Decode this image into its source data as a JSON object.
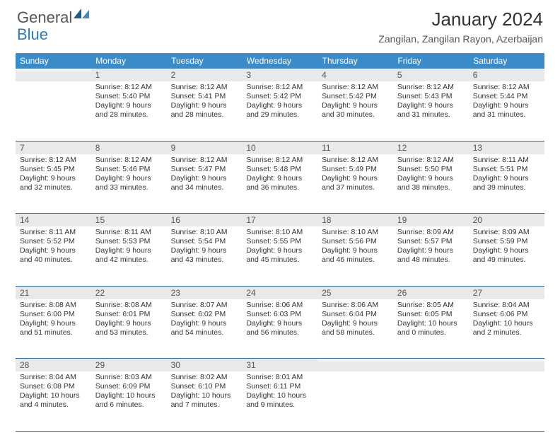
{
  "logo": {
    "text1": "General",
    "text2": "Blue"
  },
  "title": "January 2024",
  "location": "Zangilan, Zangilan Rayon, Azerbaijan",
  "colors": {
    "header_bg": "#3b8bc9",
    "header_text": "#ffffff",
    "daynum_bg": "#e9e9e9",
    "row_divider": "#2c6aa0",
    "logo_blue": "#2c7bb6",
    "body_bg": "#ffffff",
    "text": "#333333"
  },
  "weekdays": [
    "Sunday",
    "Monday",
    "Tuesday",
    "Wednesday",
    "Thursday",
    "Friday",
    "Saturday"
  ],
  "weeks": [
    [
      {
        "day": "",
        "sunrise": "",
        "sunset": "",
        "daylight_a": "",
        "daylight_b": ""
      },
      {
        "day": "1",
        "sunrise": "Sunrise: 8:12 AM",
        "sunset": "Sunset: 5:40 PM",
        "daylight_a": "Daylight: 9 hours",
        "daylight_b": "and 28 minutes."
      },
      {
        "day": "2",
        "sunrise": "Sunrise: 8:12 AM",
        "sunset": "Sunset: 5:41 PM",
        "daylight_a": "Daylight: 9 hours",
        "daylight_b": "and 28 minutes."
      },
      {
        "day": "3",
        "sunrise": "Sunrise: 8:12 AM",
        "sunset": "Sunset: 5:42 PM",
        "daylight_a": "Daylight: 9 hours",
        "daylight_b": "and 29 minutes."
      },
      {
        "day": "4",
        "sunrise": "Sunrise: 8:12 AM",
        "sunset": "Sunset: 5:42 PM",
        "daylight_a": "Daylight: 9 hours",
        "daylight_b": "and 30 minutes."
      },
      {
        "day": "5",
        "sunrise": "Sunrise: 8:12 AM",
        "sunset": "Sunset: 5:43 PM",
        "daylight_a": "Daylight: 9 hours",
        "daylight_b": "and 31 minutes."
      },
      {
        "day": "6",
        "sunrise": "Sunrise: 8:12 AM",
        "sunset": "Sunset: 5:44 PM",
        "daylight_a": "Daylight: 9 hours",
        "daylight_b": "and 31 minutes."
      }
    ],
    [
      {
        "day": "7",
        "sunrise": "Sunrise: 8:12 AM",
        "sunset": "Sunset: 5:45 PM",
        "daylight_a": "Daylight: 9 hours",
        "daylight_b": "and 32 minutes."
      },
      {
        "day": "8",
        "sunrise": "Sunrise: 8:12 AM",
        "sunset": "Sunset: 5:46 PM",
        "daylight_a": "Daylight: 9 hours",
        "daylight_b": "and 33 minutes."
      },
      {
        "day": "9",
        "sunrise": "Sunrise: 8:12 AM",
        "sunset": "Sunset: 5:47 PM",
        "daylight_a": "Daylight: 9 hours",
        "daylight_b": "and 34 minutes."
      },
      {
        "day": "10",
        "sunrise": "Sunrise: 8:12 AM",
        "sunset": "Sunset: 5:48 PM",
        "daylight_a": "Daylight: 9 hours",
        "daylight_b": "and 36 minutes."
      },
      {
        "day": "11",
        "sunrise": "Sunrise: 8:12 AM",
        "sunset": "Sunset: 5:49 PM",
        "daylight_a": "Daylight: 9 hours",
        "daylight_b": "and 37 minutes."
      },
      {
        "day": "12",
        "sunrise": "Sunrise: 8:12 AM",
        "sunset": "Sunset: 5:50 PM",
        "daylight_a": "Daylight: 9 hours",
        "daylight_b": "and 38 minutes."
      },
      {
        "day": "13",
        "sunrise": "Sunrise: 8:11 AM",
        "sunset": "Sunset: 5:51 PM",
        "daylight_a": "Daylight: 9 hours",
        "daylight_b": "and 39 minutes."
      }
    ],
    [
      {
        "day": "14",
        "sunrise": "Sunrise: 8:11 AM",
        "sunset": "Sunset: 5:52 PM",
        "daylight_a": "Daylight: 9 hours",
        "daylight_b": "and 40 minutes."
      },
      {
        "day": "15",
        "sunrise": "Sunrise: 8:11 AM",
        "sunset": "Sunset: 5:53 PM",
        "daylight_a": "Daylight: 9 hours",
        "daylight_b": "and 42 minutes."
      },
      {
        "day": "16",
        "sunrise": "Sunrise: 8:10 AM",
        "sunset": "Sunset: 5:54 PM",
        "daylight_a": "Daylight: 9 hours",
        "daylight_b": "and 43 minutes."
      },
      {
        "day": "17",
        "sunrise": "Sunrise: 8:10 AM",
        "sunset": "Sunset: 5:55 PM",
        "daylight_a": "Daylight: 9 hours",
        "daylight_b": "and 45 minutes."
      },
      {
        "day": "18",
        "sunrise": "Sunrise: 8:10 AM",
        "sunset": "Sunset: 5:56 PM",
        "daylight_a": "Daylight: 9 hours",
        "daylight_b": "and 46 minutes."
      },
      {
        "day": "19",
        "sunrise": "Sunrise: 8:09 AM",
        "sunset": "Sunset: 5:57 PM",
        "daylight_a": "Daylight: 9 hours",
        "daylight_b": "and 48 minutes."
      },
      {
        "day": "20",
        "sunrise": "Sunrise: 8:09 AM",
        "sunset": "Sunset: 5:59 PM",
        "daylight_a": "Daylight: 9 hours",
        "daylight_b": "and 49 minutes."
      }
    ],
    [
      {
        "day": "21",
        "sunrise": "Sunrise: 8:08 AM",
        "sunset": "Sunset: 6:00 PM",
        "daylight_a": "Daylight: 9 hours",
        "daylight_b": "and 51 minutes."
      },
      {
        "day": "22",
        "sunrise": "Sunrise: 8:08 AM",
        "sunset": "Sunset: 6:01 PM",
        "daylight_a": "Daylight: 9 hours",
        "daylight_b": "and 53 minutes."
      },
      {
        "day": "23",
        "sunrise": "Sunrise: 8:07 AM",
        "sunset": "Sunset: 6:02 PM",
        "daylight_a": "Daylight: 9 hours",
        "daylight_b": "and 54 minutes."
      },
      {
        "day": "24",
        "sunrise": "Sunrise: 8:06 AM",
        "sunset": "Sunset: 6:03 PM",
        "daylight_a": "Daylight: 9 hours",
        "daylight_b": "and 56 minutes."
      },
      {
        "day": "25",
        "sunrise": "Sunrise: 8:06 AM",
        "sunset": "Sunset: 6:04 PM",
        "daylight_a": "Daylight: 9 hours",
        "daylight_b": "and 58 minutes."
      },
      {
        "day": "26",
        "sunrise": "Sunrise: 8:05 AM",
        "sunset": "Sunset: 6:05 PM",
        "daylight_a": "Daylight: 10 hours",
        "daylight_b": "and 0 minutes."
      },
      {
        "day": "27",
        "sunrise": "Sunrise: 8:04 AM",
        "sunset": "Sunset: 6:06 PM",
        "daylight_a": "Daylight: 10 hours",
        "daylight_b": "and 2 minutes."
      }
    ],
    [
      {
        "day": "28",
        "sunrise": "Sunrise: 8:04 AM",
        "sunset": "Sunset: 6:08 PM",
        "daylight_a": "Daylight: 10 hours",
        "daylight_b": "and 4 minutes."
      },
      {
        "day": "29",
        "sunrise": "Sunrise: 8:03 AM",
        "sunset": "Sunset: 6:09 PM",
        "daylight_a": "Daylight: 10 hours",
        "daylight_b": "and 6 minutes."
      },
      {
        "day": "30",
        "sunrise": "Sunrise: 8:02 AM",
        "sunset": "Sunset: 6:10 PM",
        "daylight_a": "Daylight: 10 hours",
        "daylight_b": "and 7 minutes."
      },
      {
        "day": "31",
        "sunrise": "Sunrise: 8:01 AM",
        "sunset": "Sunset: 6:11 PM",
        "daylight_a": "Daylight: 10 hours",
        "daylight_b": "and 9 minutes."
      },
      {
        "day": "",
        "sunrise": "",
        "sunset": "",
        "daylight_a": "",
        "daylight_b": ""
      },
      {
        "day": "",
        "sunrise": "",
        "sunset": "",
        "daylight_a": "",
        "daylight_b": ""
      },
      {
        "day": "",
        "sunrise": "",
        "sunset": "",
        "daylight_a": "",
        "daylight_b": ""
      }
    ]
  ]
}
